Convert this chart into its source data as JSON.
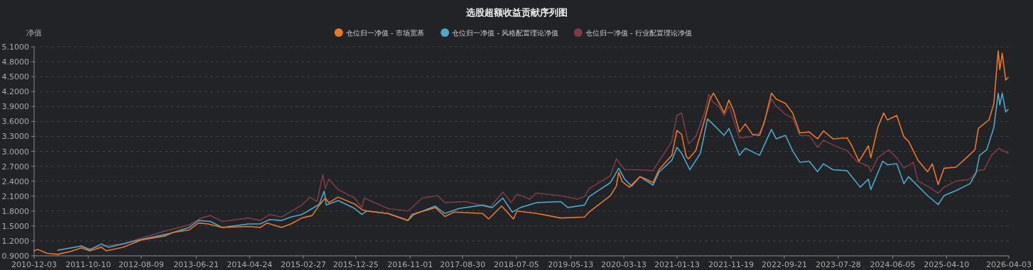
{
  "chart_data": {
    "type": "line",
    "title": "选股超额收益贡献序列图",
    "ylabel": "净值",
    "legend": "top",
    "grid": "y",
    "xlim": [
      "2010-12-03",
      "2026-04-03"
    ],
    "xticks": [
      "2010-12-03",
      "2011-10-10",
      "2012-08-09",
      "2013-06-21",
      "2014-04-24",
      "2015-02-27",
      "2015-12-25",
      "2016-11-01",
      "2017-08-30",
      "2018-07-05",
      "2019-05-13",
      "2020-03-13",
      "2021-01-13",
      "2021-11-19",
      "2022-09-21",
      "2023-07-28",
      "2024-06-05",
      "2025-04-10",
      "2026-04-03"
    ],
    "ylim": [
      0.9,
      5.1
    ],
    "yticks": [
      {
        "value": 0.9,
        "label": "0.9000"
      },
      {
        "value": 1.2,
        "label": "1.2000"
      },
      {
        "value": 1.5,
        "label": "1.5000"
      },
      {
        "value": 1.8,
        "label": "1.8000"
      },
      {
        "value": 2.1,
        "label": "2.1000"
      },
      {
        "value": 2.4,
        "label": "2.4000"
      },
      {
        "value": 2.7,
        "label": "2.7000"
      },
      {
        "value": 3.0,
        "label": "3.0000"
      },
      {
        "value": 3.3,
        "label": "3.3000"
      },
      {
        "value": 3.6,
        "label": "3.6000"
      },
      {
        "value": 3.9,
        "label": "3.9000"
      },
      {
        "value": 4.2,
        "label": "4.2000"
      },
      {
        "value": 4.5,
        "label": "4.5000"
      },
      {
        "value": 4.8,
        "label": "4.8000"
      },
      {
        "value": 5.1,
        "label": "5.1000"
      }
    ],
    "series": [
      {
        "name": "仓位归一净值 - 市场宽基",
        "color": "#e8772e",
        "x": [
          "2010-12-03",
          "2010-12-23",
          "2011-02-16",
          "2011-04-18",
          "2011-07-02",
          "2011-09-01",
          "2011-10-19",
          "2011-12-25",
          "2012-01-21",
          "2012-04-26",
          "2012-08-12",
          "2012-12-27",
          "2013-02-06",
          "2013-05-12",
          "2013-07-05",
          "2013-08-29",
          "2013-11-18",
          "2014-04-17",
          "2014-06-24",
          "2014-08-04",
          "2014-10-24",
          "2014-12-17",
          "2015-02-18",
          "2015-04-19",
          "2015-05-30",
          "2015-07-03",
          "2015-07-23",
          "2015-09-15",
          "2015-12-19",
          "2016-01-29",
          "2016-02-25",
          "2016-06-27",
          "2016-10-20",
          "2016-11-10",
          "2017-03-26",
          "2017-05-20",
          "2017-07-13",
          "2017-12-23",
          "2018-01-26",
          "2018-04-11",
          "2018-06-18",
          "2018-07-08",
          "2018-11-01",
          "2019-03-16",
          "2019-07-31",
          "2019-08-27",
          "2019-12-27",
          "2020-01-30",
          "2020-02-13",
          "2020-03-04",
          "2020-04-14",
          "2020-06-14",
          "2020-08-01",
          "2020-08-28",
          "2020-10-01",
          "2020-12-14",
          "2021-01-12",
          "2021-02-08",
          "2021-03-07",
          "2021-03-20",
          "2021-04-30",
          "2021-06-23",
          "2021-07-21",
          "2021-08-10",
          "2021-09-13",
          "2021-10-10",
          "2021-11-07",
          "2021-12-04",
          "2022-01-06",
          "2022-02-09",
          "2022-03-22",
          "2022-05-02",
          "2022-05-29",
          "2022-07-09",
          "2022-08-05",
          "2022-09-28",
          "2022-11-08",
          "2022-12-19",
          "2023-02-11",
          "2023-03-31",
          "2023-05-04",
          "2023-06-27",
          "2023-09-17",
          "2023-10-14",
          "2023-11-24",
          "2024-01-17",
          "2024-01-31",
          "2024-03-11",
          "2024-04-14",
          "2024-05-05",
          "2024-06-28",
          "2024-08-08",
          "2024-09-04",
          "2024-10-28",
          "2024-12-22",
          "2025-01-18",
          "2025-02-21",
          "2025-03-27",
          "2025-06-03",
          "2025-07-27",
          "2025-09-20",
          "2025-10-10",
          "2025-12-10",
          "2026-01-07",
          "2026-02-01",
          "2026-02-10",
          "2026-02-24",
          "2026-03-16",
          "2026-03-30"
        ],
        "values": [
          1.0,
          1.03,
          0.95,
          0.93,
          0.99,
          1.06,
          1.0,
          1.07,
          1.0,
          1.07,
          1.22,
          1.3,
          1.37,
          1.42,
          1.56,
          1.54,
          1.47,
          1.49,
          1.47,
          1.56,
          1.47,
          1.54,
          1.66,
          1.71,
          1.92,
          2.06,
          1.97,
          2.08,
          1.94,
          1.83,
          1.8,
          1.75,
          1.61,
          1.73,
          1.87,
          1.69,
          1.78,
          1.75,
          1.64,
          1.9,
          1.64,
          1.8,
          1.75,
          1.66,
          1.68,
          1.78,
          2.11,
          2.3,
          2.58,
          2.39,
          2.28,
          2.49,
          2.42,
          2.37,
          2.63,
          2.92,
          3.42,
          3.34,
          2.89,
          2.85,
          3.01,
          3.67,
          4.05,
          4.17,
          3.96,
          3.77,
          4.03,
          3.81,
          3.39,
          3.55,
          3.34,
          3.32,
          3.58,
          4.17,
          4.05,
          3.96,
          3.77,
          3.37,
          3.39,
          3.25,
          3.41,
          3.25,
          3.27,
          3.11,
          2.8,
          3.11,
          2.87,
          3.48,
          3.77,
          3.63,
          3.72,
          3.29,
          3.2,
          2.82,
          2.59,
          2.75,
          2.33,
          2.66,
          2.68,
          2.85,
          3.03,
          3.46,
          3.63,
          3.96,
          5.02,
          4.64,
          4.97,
          4.43,
          4.48
        ]
      },
      {
        "name": "仓位归一净值 - 风格配置理论净值",
        "color": "#4fa6c6",
        "x": [
          "2011-04-18",
          "2011-09-01",
          "2011-10-19",
          "2011-12-25",
          "2012-02-04",
          "2012-08-12",
          "2013-01-23",
          "2013-05-12",
          "2013-07-05",
          "2013-09-11",
          "2013-11-18",
          "2014-04-17",
          "2014-06-24",
          "2014-08-17",
          "2014-10-24",
          "2014-12-17",
          "2015-02-18",
          "2015-04-19",
          "2015-05-30",
          "2015-06-26",
          "2015-07-09",
          "2015-09-15",
          "2015-12-19",
          "2016-01-29",
          "2016-02-25",
          "2016-06-27",
          "2016-10-20",
          "2016-11-23",
          "2017-03-26",
          "2017-05-20",
          "2017-08-09",
          "2017-12-23",
          "2018-02-16",
          "2018-04-18",
          "2018-06-11",
          "2018-07-28",
          "2018-11-01",
          "2019-03-16",
          "2019-04-26",
          "2019-07-31",
          "2019-08-27",
          "2019-12-27",
          "2020-02-13",
          "2020-03-18",
          "2020-04-27",
          "2020-06-14",
          "2020-08-28",
          "2020-10-01",
          "2020-12-14",
          "2021-01-12",
          "2021-02-08",
          "2021-03-27",
          "2021-05-27",
          "2021-07-07",
          "2021-08-17",
          "2021-10-10",
          "2021-11-07",
          "2022-01-06",
          "2022-02-09",
          "2022-05-02",
          "2022-07-09",
          "2022-08-05",
          "2022-09-28",
          "2022-11-08",
          "2022-12-19",
          "2023-02-11",
          "2023-03-31",
          "2023-05-04",
          "2023-06-27",
          "2023-09-17",
          "2023-12-01",
          "2024-01-17",
          "2024-01-31",
          "2024-04-08",
          "2024-05-05",
          "2024-06-28",
          "2024-08-08",
          "2024-09-04",
          "2024-10-28",
          "2024-12-22",
          "2025-02-21",
          "2025-03-27",
          "2025-06-03",
          "2025-08-23",
          "2025-09-26",
          "2025-10-17",
          "2025-11-27",
          "2026-01-07",
          "2026-02-01",
          "2026-02-10",
          "2026-02-24",
          "2026-03-16",
          "2026-03-30"
        ],
        "values": [
          1.01,
          1.1,
          1.02,
          1.14,
          1.07,
          1.23,
          1.35,
          1.47,
          1.61,
          1.59,
          1.47,
          1.54,
          1.54,
          1.63,
          1.61,
          1.68,
          1.73,
          1.85,
          1.94,
          2.2,
          1.92,
          2.01,
          1.85,
          1.73,
          1.8,
          1.75,
          1.61,
          1.73,
          1.9,
          1.75,
          1.85,
          1.92,
          1.87,
          2.06,
          1.78,
          1.87,
          1.97,
          1.99,
          1.87,
          1.92,
          2.09,
          2.37,
          2.66,
          2.44,
          2.3,
          2.49,
          2.32,
          2.58,
          2.82,
          3.08,
          2.96,
          2.63,
          2.96,
          3.65,
          3.51,
          3.32,
          3.46,
          2.92,
          3.06,
          2.92,
          3.44,
          3.25,
          3.32,
          3.01,
          2.78,
          2.8,
          2.59,
          2.75,
          2.63,
          2.61,
          2.28,
          2.44,
          2.23,
          2.8,
          2.73,
          2.75,
          2.35,
          2.49,
          2.3,
          2.11,
          1.93,
          2.11,
          2.21,
          2.35,
          2.56,
          2.92,
          3.03,
          3.48,
          4.17,
          3.93,
          4.17,
          3.79,
          3.84
        ]
      },
      {
        "name": "仓位归一净值 - 行业配置理论净值",
        "color": "#7a3c46",
        "x": [
          "2011-04-18",
          "2011-09-01",
          "2011-10-19",
          "2011-12-25",
          "2012-04-26",
          "2012-08-12",
          "2012-12-27",
          "2013-05-12",
          "2013-07-19",
          "2013-09-11",
          "2013-11-18",
          "2014-04-17",
          "2014-06-24",
          "2014-08-17",
          "2014-10-24",
          "2015-02-18",
          "2015-04-06",
          "2015-05-16",
          "2015-06-19",
          "2015-07-03",
          "2015-07-23",
          "2015-09-15",
          "2015-12-19",
          "2016-01-29",
          "2016-02-12",
          "2016-06-27",
          "2016-10-20",
          "2017-01-10",
          "2017-04-09",
          "2017-05-20",
          "2017-09-19",
          "2018-02-02",
          "2018-04-18",
          "2018-06-04",
          "2018-07-08",
          "2018-09-21",
          "2018-10-25",
          "2019-03-16",
          "2019-06-20",
          "2019-07-31",
          "2019-08-27",
          "2019-12-27",
          "2020-01-30",
          "2020-03-18",
          "2020-05-25",
          "2020-08-28",
          "2020-10-01",
          "2020-12-14",
          "2021-01-12",
          "2021-02-08",
          "2021-03-20",
          "2021-04-30",
          "2021-06-23",
          "2021-07-14",
          "2021-08-03",
          "2021-09-13",
          "2021-10-10",
          "2021-11-07",
          "2022-01-06",
          "2022-03-09",
          "2022-05-02",
          "2022-05-22",
          "2022-07-09",
          "2022-08-05",
          "2022-09-28",
          "2022-11-08",
          "2022-12-19",
          "2023-02-11",
          "2023-03-31",
          "2023-05-04",
          "2023-06-27",
          "2023-09-17",
          "2023-11-10",
          "2024-01-17",
          "2024-01-31",
          "2024-03-11",
          "2024-05-12",
          "2024-06-28",
          "2024-08-08",
          "2024-10-01",
          "2024-10-28",
          "2024-12-22",
          "2025-02-21",
          "2025-03-27",
          "2025-06-03",
          "2025-08-23",
          "2025-10-03",
          "2025-11-13",
          "2025-12-24",
          "2026-02-04",
          "2026-03-30"
        ],
        "values": [
          1.02,
          1.09,
          1.04,
          1.09,
          1.14,
          1.26,
          1.4,
          1.52,
          1.66,
          1.71,
          1.59,
          1.66,
          1.61,
          1.73,
          1.68,
          1.92,
          2.08,
          1.99,
          2.53,
          2.25,
          2.44,
          2.23,
          2.06,
          1.87,
          2.06,
          1.85,
          1.8,
          2.06,
          2.11,
          1.97,
          1.99,
          1.87,
          2.18,
          1.97,
          2.14,
          2.04,
          2.16,
          2.11,
          2.04,
          2.09,
          2.25,
          2.51,
          2.85,
          2.63,
          2.63,
          2.61,
          2.8,
          3.2,
          3.72,
          3.77,
          3.15,
          3.29,
          3.81,
          4.15,
          4.0,
          3.89,
          3.72,
          3.91,
          3.27,
          3.29,
          3.37,
          3.53,
          4.05,
          3.91,
          3.74,
          3.67,
          3.32,
          3.32,
          3.08,
          3.22,
          3.13,
          3.01,
          2.8,
          2.7,
          2.59,
          2.87,
          3.03,
          2.87,
          2.66,
          2.78,
          2.4,
          2.3,
          2.16,
          2.28,
          2.4,
          2.44,
          2.61,
          2.63,
          2.92,
          3.06,
          2.96
        ]
      }
    ]
  }
}
